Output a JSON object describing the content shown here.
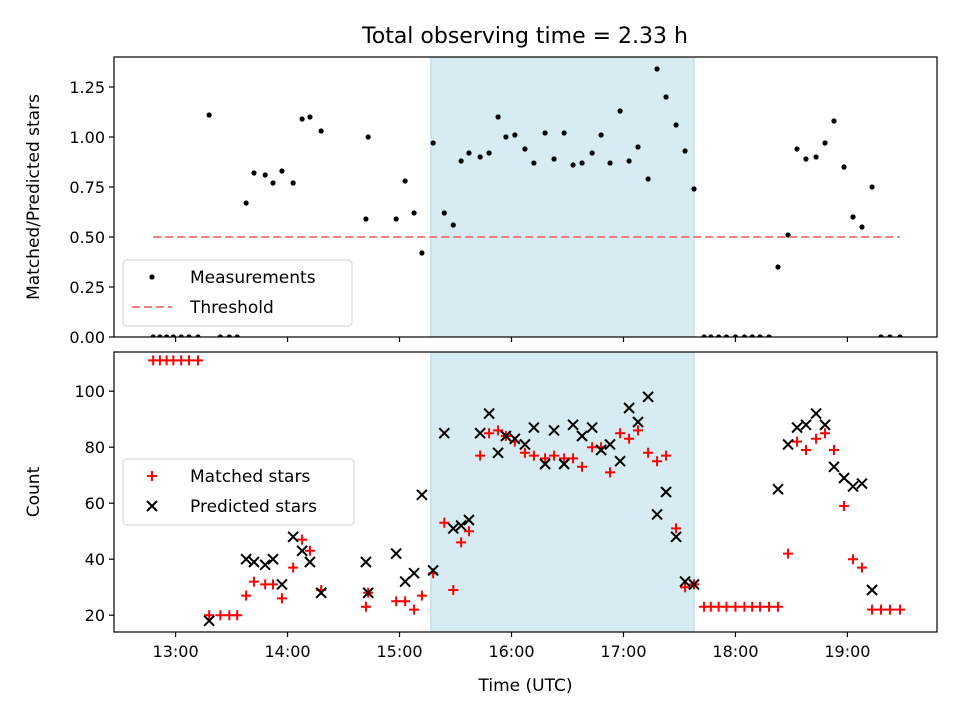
{
  "figure": {
    "title": "Total observing time = 2.33 h"
  },
  "chart_data": [
    {
      "type": "scatter",
      "ylabel": "Matched/Predicted stars",
      "xlabel": "",
      "xlim": [
        12.45,
        19.8
      ],
      "ylim": [
        0,
        1.4
      ],
      "xticks": [
        "13:00",
        "14:00",
        "15:00",
        "16:00",
        "17:00",
        "18:00",
        "19:00"
      ],
      "xtick_values": [
        13,
        14,
        15,
        16,
        17,
        18,
        19
      ],
      "show_xticklabels": false,
      "yticks": [
        "0.00",
        "0.25",
        "0.50",
        "0.75",
        "1.00",
        "1.25"
      ],
      "ytick_values": [
        0,
        0.25,
        0.5,
        0.75,
        1.0,
        1.25
      ],
      "shaded_span": {
        "x": [
          15.28,
          17.63
        ],
        "color": "#add8e6"
      },
      "legend": {
        "placement": "lower-left",
        "entries": [
          "Measurements",
          "Threshold"
        ]
      },
      "series": [
        {
          "name": "Measurements",
          "marker": "dot",
          "color": "#000000",
          "points": [
            [
              12.8,
              0
            ],
            [
              12.86,
              0
            ],
            [
              12.92,
              0
            ],
            [
              12.98,
              0
            ],
            [
              13.05,
              0
            ],
            [
              13.12,
              0
            ],
            [
              13.2,
              0
            ],
            [
              13.3,
              1.11
            ],
            [
              13.4,
              0
            ],
            [
              13.48,
              0
            ],
            [
              13.55,
              0
            ],
            [
              13.63,
              0.67
            ],
            [
              13.7,
              0.82
            ],
            [
              13.8,
              0.81
            ],
            [
              13.87,
              0.77
            ],
            [
              13.95,
              0.83
            ],
            [
              14.05,
              0.77
            ],
            [
              14.13,
              1.09
            ],
            [
              14.2,
              1.1
            ],
            [
              14.3,
              1.03
            ],
            [
              14.7,
              0.59
            ],
            [
              14.72,
              1.0
            ],
            [
              14.97,
              0.59
            ],
            [
              15.05,
              0.78
            ],
            [
              15.13,
              0.62
            ],
            [
              15.2,
              0.42
            ],
            [
              15.3,
              0.97
            ],
            [
              15.4,
              0.62
            ],
            [
              15.48,
              0.56
            ],
            [
              15.55,
              0.88
            ],
            [
              15.62,
              0.92
            ],
            [
              15.72,
              0.9
            ],
            [
              15.8,
              0.92
            ],
            [
              15.88,
              1.1
            ],
            [
              15.95,
              1.0
            ],
            [
              16.03,
              1.01
            ],
            [
              16.12,
              0.94
            ],
            [
              16.2,
              0.87
            ],
            [
              16.3,
              1.02
            ],
            [
              16.38,
              0.89
            ],
            [
              16.47,
              1.02
            ],
            [
              16.55,
              0.86
            ],
            [
              16.63,
              0.87
            ],
            [
              16.72,
              0.92
            ],
            [
              16.8,
              1.01
            ],
            [
              16.88,
              0.87
            ],
            [
              16.97,
              1.13
            ],
            [
              17.05,
              0.88
            ],
            [
              17.13,
              0.95
            ],
            [
              17.22,
              0.79
            ],
            [
              17.3,
              1.34
            ],
            [
              17.38,
              1.2
            ],
            [
              17.47,
              1.06
            ],
            [
              17.55,
              0.93
            ],
            [
              17.63,
              0.74
            ],
            [
              17.72,
              0
            ],
            [
              17.78,
              0
            ],
            [
              17.85,
              0
            ],
            [
              17.92,
              0
            ],
            [
              18.0,
              0
            ],
            [
              18.08,
              0
            ],
            [
              18.15,
              0
            ],
            [
              18.22,
              0
            ],
            [
              18.3,
              0
            ],
            [
              18.38,
              0.35
            ],
            [
              18.47,
              0.51
            ],
            [
              18.55,
              0.94
            ],
            [
              18.63,
              0.89
            ],
            [
              18.72,
              0.9
            ],
            [
              18.8,
              0.97
            ],
            [
              18.88,
              1.08
            ],
            [
              18.97,
              0.85
            ],
            [
              19.05,
              0.6
            ],
            [
              19.13,
              0.55
            ],
            [
              19.22,
              0.75
            ],
            [
              19.3,
              0
            ],
            [
              19.38,
              0
            ],
            [
              19.47,
              0
            ]
          ]
        },
        {
          "name": "Threshold",
          "line": "dashed",
          "color": "#f08080",
          "points": [
            [
              12.8,
              0.5
            ],
            [
              19.47,
              0.5
            ]
          ]
        }
      ]
    },
    {
      "type": "scatter",
      "ylabel": "Count",
      "xlabel": "Time (UTC)",
      "xlim": [
        12.45,
        19.8
      ],
      "ylim": [
        14,
        114
      ],
      "xticks": [
        "13:00",
        "14:00",
        "15:00",
        "16:00",
        "17:00",
        "18:00",
        "19:00"
      ],
      "xtick_values": [
        13,
        14,
        15,
        16,
        17,
        18,
        19
      ],
      "show_xticklabels": true,
      "yticks": [
        "20",
        "40",
        "60",
        "80",
        "100"
      ],
      "ytick_values": [
        20,
        40,
        60,
        80,
        100
      ],
      "shaded_span": {
        "x": [
          15.28,
          17.63
        ],
        "color": "#add8e6"
      },
      "legend": {
        "placement": "center-left",
        "entries": [
          "Matched stars",
          "Predicted stars"
        ]
      },
      "series": [
        {
          "name": "Matched stars",
          "marker": "plus",
          "color": "#ff0000",
          "points": [
            [
              12.8,
              111
            ],
            [
              12.86,
              111
            ],
            [
              12.92,
              111
            ],
            [
              12.98,
              111
            ],
            [
              13.05,
              111
            ],
            [
              13.12,
              111
            ],
            [
              13.2,
              111
            ],
            [
              13.3,
              20
            ],
            [
              13.4,
              20
            ],
            [
              13.48,
              20
            ],
            [
              13.55,
              20
            ],
            [
              13.63,
              27
            ],
            [
              13.7,
              32
            ],
            [
              13.8,
              31
            ],
            [
              13.87,
              31
            ],
            [
              13.95,
              26
            ],
            [
              14.05,
              37
            ],
            [
              14.13,
              47
            ],
            [
              14.2,
              43
            ],
            [
              14.3,
              29
            ],
            [
              14.7,
              23
            ],
            [
              14.72,
              28
            ],
            [
              14.97,
              25
            ],
            [
              15.05,
              25
            ],
            [
              15.13,
              22
            ],
            [
              15.2,
              27
            ],
            [
              15.3,
              35
            ],
            [
              15.4,
              53
            ],
            [
              15.48,
              29
            ],
            [
              15.55,
              46
            ],
            [
              15.62,
              50
            ],
            [
              15.72,
              77
            ],
            [
              15.8,
              85
            ],
            [
              15.88,
              86
            ],
            [
              15.95,
              84
            ],
            [
              16.03,
              82
            ],
            [
              16.12,
              78
            ],
            [
              16.2,
              77
            ],
            [
              16.3,
              76
            ],
            [
              16.38,
              77
            ],
            [
              16.47,
              76
            ],
            [
              16.55,
              76
            ],
            [
              16.63,
              73
            ],
            [
              16.72,
              80
            ],
            [
              16.8,
              80
            ],
            [
              16.88,
              71
            ],
            [
              16.97,
              85
            ],
            [
              17.05,
              83
            ],
            [
              17.13,
              86
            ],
            [
              17.22,
              78
            ],
            [
              17.3,
              75
            ],
            [
              17.38,
              77
            ],
            [
              17.47,
              51
            ],
            [
              17.55,
              30
            ],
            [
              17.63,
              31
            ],
            [
              17.72,
              23
            ],
            [
              17.78,
              23
            ],
            [
              17.85,
              23
            ],
            [
              17.92,
              23
            ],
            [
              18.0,
              23
            ],
            [
              18.08,
              23
            ],
            [
              18.15,
              23
            ],
            [
              18.22,
              23
            ],
            [
              18.3,
              23
            ],
            [
              18.38,
              23
            ],
            [
              18.47,
              42
            ],
            [
              18.55,
              82
            ],
            [
              18.63,
              79
            ],
            [
              18.72,
              83
            ],
            [
              18.8,
              85
            ],
            [
              18.88,
              79
            ],
            [
              18.97,
              59
            ],
            [
              19.05,
              40
            ],
            [
              19.13,
              37
            ],
            [
              19.22,
              22
            ],
            [
              19.3,
              22
            ],
            [
              19.38,
              22
            ],
            [
              19.47,
              22
            ]
          ]
        },
        {
          "name": "Predicted stars",
          "marker": "x",
          "color": "#000000",
          "points": [
            [
              13.3,
              18
            ],
            [
              13.63,
              40
            ],
            [
              13.7,
              39
            ],
            [
              13.8,
              38
            ],
            [
              13.87,
              40
            ],
            [
              13.95,
              31
            ],
            [
              14.05,
              48
            ],
            [
              14.13,
              43
            ],
            [
              14.2,
              39
            ],
            [
              14.3,
              28
            ],
            [
              14.7,
              39
            ],
            [
              14.72,
              28
            ],
            [
              14.97,
              42
            ],
            [
              15.05,
              32
            ],
            [
              15.13,
              35
            ],
            [
              15.2,
              63
            ],
            [
              15.3,
              36
            ],
            [
              15.4,
              85
            ],
            [
              15.48,
              51
            ],
            [
              15.55,
              52
            ],
            [
              15.62,
              54
            ],
            [
              15.72,
              85
            ],
            [
              15.8,
              92
            ],
            [
              15.88,
              78
            ],
            [
              15.95,
              84
            ],
            [
              16.03,
              83
            ],
            [
              16.12,
              81
            ],
            [
              16.2,
              87
            ],
            [
              16.3,
              74
            ],
            [
              16.38,
              86
            ],
            [
              16.47,
              74
            ],
            [
              16.55,
              88
            ],
            [
              16.63,
              84
            ],
            [
              16.72,
              87
            ],
            [
              16.8,
              79
            ],
            [
              16.88,
              81
            ],
            [
              16.97,
              75
            ],
            [
              17.05,
              94
            ],
            [
              17.13,
              89
            ],
            [
              17.22,
              98
            ],
            [
              17.3,
              56
            ],
            [
              17.38,
              64
            ],
            [
              17.47,
              48
            ],
            [
              17.55,
              32
            ],
            [
              17.63,
              31
            ],
            [
              18.38,
              65
            ],
            [
              18.47,
              81
            ],
            [
              18.55,
              87
            ],
            [
              18.63,
              88
            ],
            [
              18.72,
              92
            ],
            [
              18.8,
              88
            ],
            [
              18.88,
              73
            ],
            [
              18.97,
              69
            ],
            [
              19.05,
              66
            ],
            [
              19.13,
              67
            ],
            [
              19.22,
              29
            ]
          ]
        }
      ]
    }
  ]
}
